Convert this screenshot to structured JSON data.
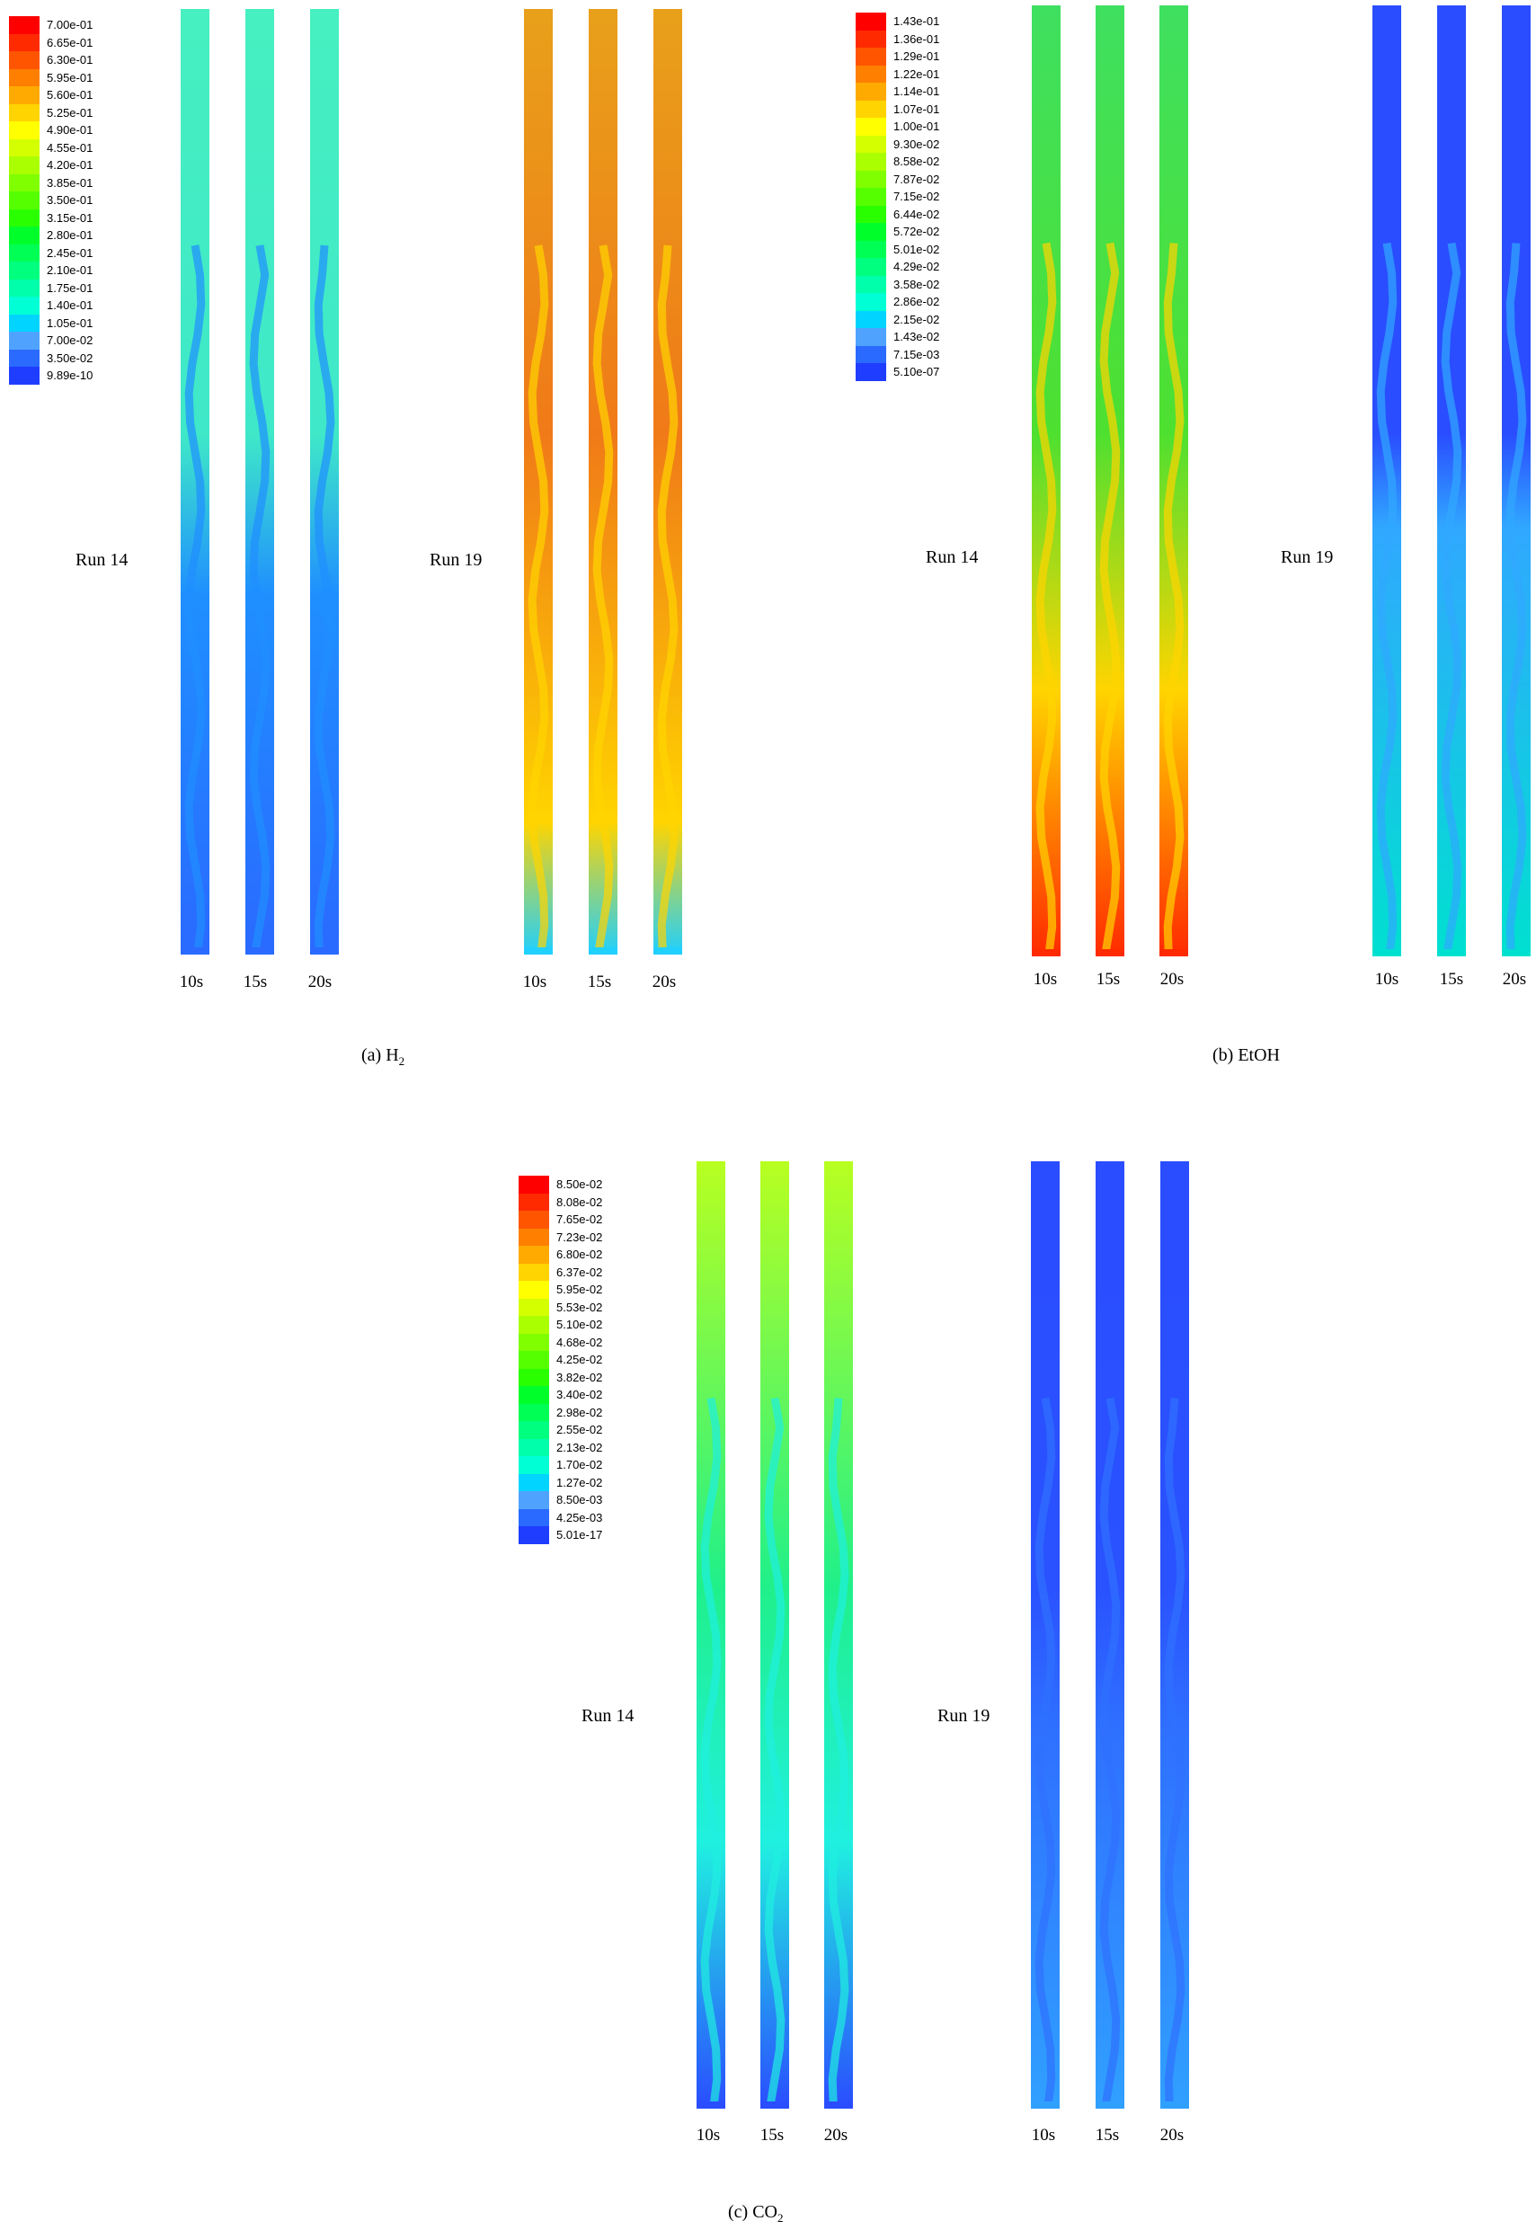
{
  "panels": [
    {
      "id": "h2",
      "caption_prefix": "(a) H",
      "caption_sub": "2",
      "caption_suffix": "",
      "legend": [
        "7.00e-01",
        "6.65e-01",
        "6.30e-01",
        "5.95e-01",
        "5.60e-01",
        "5.25e-01",
        "4.90e-01",
        "4.55e-01",
        "4.20e-01",
        "3.85e-01",
        "3.50e-01",
        "3.15e-01",
        "2.80e-01",
        "2.45e-01",
        "2.10e-01",
        "1.75e-01",
        "1.40e-01",
        "1.05e-01",
        "7.00e-02",
        "3.50e-02",
        "9.89e-10"
      ],
      "runs": [
        {
          "label": "Run 14",
          "times": [
            "10s",
            "15s",
            "20s"
          ]
        },
        {
          "label": "Run 19",
          "times": [
            "10s",
            "15s",
            "20s"
          ]
        }
      ]
    },
    {
      "id": "etoh",
      "caption_prefix": "(b) EtOH",
      "caption_sub": "",
      "caption_suffix": "",
      "legend": [
        "1.43e-01",
        "1.36e-01",
        "1.29e-01",
        "1.22e-01",
        "1.14e-01",
        "1.07e-01",
        "1.00e-01",
        "9.30e-02",
        "8.58e-02",
        "7.87e-02",
        "7.15e-02",
        "6.44e-02",
        "5.72e-02",
        "5.01e-02",
        "4.29e-02",
        "3.58e-02",
        "2.86e-02",
        "2.15e-02",
        "1.43e-02",
        "7.15e-03",
        "5.10e-07"
      ],
      "runs": [
        {
          "label": "Run 14",
          "times": [
            "10s",
            "15s",
            "20s"
          ]
        },
        {
          "label": "Run 19",
          "times": [
            "10s",
            "15s",
            "20s"
          ]
        }
      ]
    },
    {
      "id": "co2",
      "caption_prefix": "(c) CO",
      "caption_sub": "2",
      "caption_suffix": "",
      "legend": [
        "8.50e-02",
        "8.08e-02",
        "7.65e-02",
        "7.23e-02",
        "6.80e-02",
        "6.37e-02",
        "5.95e-02",
        "5.53e-02",
        "5.10e-02",
        "4.68e-02",
        "4.25e-02",
        "3.82e-02",
        "3.40e-02",
        "2.98e-02",
        "2.55e-02",
        "2.13e-02",
        "1.70e-02",
        "1.27e-02",
        "8.50e-03",
        "4.25e-03",
        "5.01e-17"
      ],
      "runs": [
        {
          "label": "Run 14",
          "times": [
            "10s",
            "15s",
            "20s"
          ]
        },
        {
          "label": "Run 19",
          "times": [
            "10s",
            "15s",
            "20s"
          ]
        }
      ]
    }
  ],
  "colormap": [
    "#ff0000",
    "#ff2a00",
    "#ff5500",
    "#ff7f00",
    "#ffaa00",
    "#ffd400",
    "#ffff00",
    "#d4ff00",
    "#aaff00",
    "#7fff00",
    "#55ff00",
    "#2aff00",
    "#00ff2a",
    "#00ff55",
    "#00ff7f",
    "#00ffaa",
    "#00ffd4",
    "#00d4ff",
    "#4fa3ff",
    "#2a6aff",
    "#1f3dff"
  ]
}
